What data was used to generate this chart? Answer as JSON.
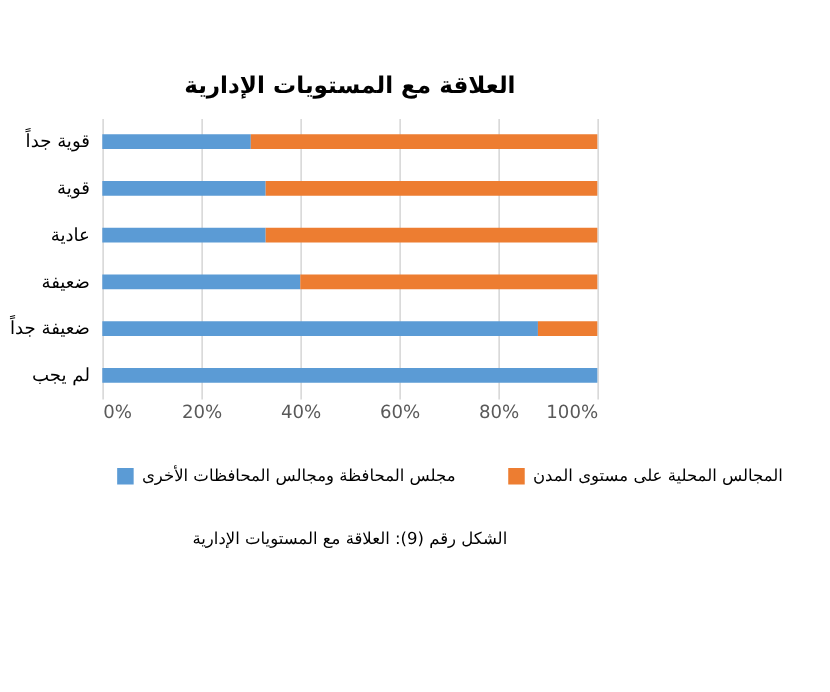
{
  "chart_data": {
    "type": "bar",
    "orientation": "horizontal",
    "stacked": true,
    "title": "العلاقة مع المستويات الإدارية",
    "categories": [
      "قوية جداً",
      "قوية",
      "عادية",
      "ضعيفة",
      "ضعيفة جداً",
      "لم يجب"
    ],
    "series": [
      {
        "name": "مجلس المحافظة ومجالس المحافظات الأخرى",
        "color": "#5b9bd5",
        "values": [
          30,
          33,
          33,
          40,
          88,
          100
        ]
      },
      {
        "name": "المجالس المحلية على مستوى المدن",
        "color": "#ed7d31",
        "values": [
          70,
          67,
          67,
          60,
          12,
          0
        ]
      }
    ],
    "xlim": [
      0,
      100
    ],
    "xticks": [
      {
        "value": 0,
        "label": "0%"
      },
      {
        "value": 20,
        "label": "20%"
      },
      {
        "value": 40,
        "label": "40%"
      },
      {
        "value": 60,
        "label": "60%"
      },
      {
        "value": 80,
        "label": "80%"
      },
      {
        "value": 100,
        "label": "100%"
      }
    ],
    "grid": "x",
    "legend": "bottom",
    "annotations": [
      "الشكل رقم (9): العلاقة مع المستويات الإدارية"
    ]
  }
}
